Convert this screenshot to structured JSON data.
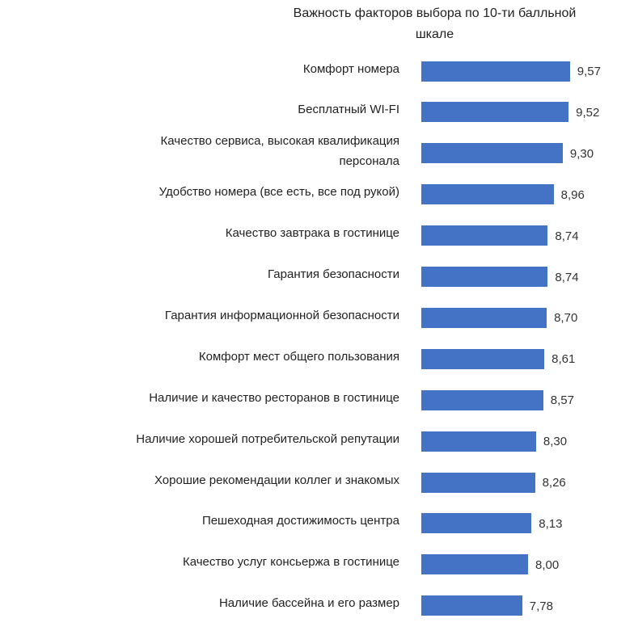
{
  "chart_data": {
    "type": "bar",
    "orientation": "horizontal",
    "title": "Важность факторов выбора по 10-ти балльной шкале",
    "categories": [
      "Комфорт номера",
      "Бесплатный WI-FI",
      "Качество сервиса, высокая квалификация персонала",
      "Удобство номера (все есть, все под рукой)",
      "Качество завтрака в гостинице",
      "Гарантия безопасности",
      "Гарантия информационной безопасности",
      "Комфорт мест общего пользования",
      "Наличие и качество ресторанов в гостинице",
      "Наличие хорошей потребительской репутации",
      "Хорошие рекомендации коллег и знакомых",
      "Пешеходная достижимость центра",
      "Качество услуг консьержа в гостинице",
      "Наличие бассейна и его размер"
    ],
    "values": [
      9.57,
      9.52,
      9.3,
      8.96,
      8.74,
      8.74,
      8.7,
      8.61,
      8.57,
      8.3,
      8.26,
      8.13,
      8.0,
      7.78
    ],
    "value_labels": [
      "9,57",
      "9,52",
      "9,30",
      "8,96",
      "8,74",
      "8,74",
      "8,70",
      "8,61",
      "8,57",
      "8,30",
      "8,26",
      "8,13",
      "8,00",
      "7,78"
    ],
    "color": "#4472c4",
    "xlim": [
      4,
      10
    ]
  }
}
